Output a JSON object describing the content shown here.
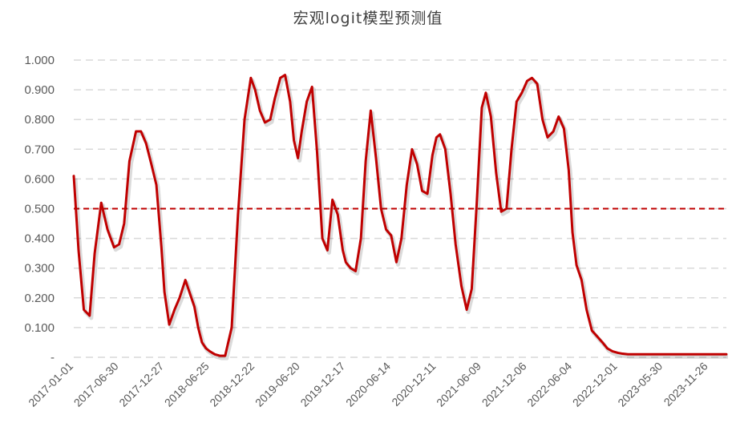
{
  "chart_data": {
    "type": "line",
    "title": "宏观logit模型预测值",
    "xlabel": "",
    "ylabel": "",
    "ylim": [
      0,
      1
    ],
    "y_tick_labels": [
      "-",
      "0.100",
      "0.200",
      "0.300",
      "0.400",
      "0.500",
      "0.600",
      "0.700",
      "0.800",
      "0.900",
      "1.000"
    ],
    "x_tick_labels": [
      "2017-01-01",
      "2017-06-30",
      "2017-12-27",
      "2018-06-25",
      "2018-12-22",
      "2019-06-20",
      "2019-12-17",
      "2020-06-14",
      "2020-12-11",
      "2021-06-09",
      "2021-12-06",
      "2022-06-04",
      "2022-12-01",
      "2023-05-30",
      "2023-11-26"
    ],
    "grid": true,
    "threshold": 0.5,
    "colors": {
      "series": "#C00000",
      "threshold": "#C00000",
      "grid": "#D9D9D9"
    },
    "series": [
      {
        "x": [
          "2017-01-01",
          "2017-01-20",
          "2017-02-10",
          "2017-03-05",
          "2017-03-25",
          "2017-04-20",
          "2017-05-15",
          "2017-06-10",
          "2017-06-30",
          "2017-07-20",
          "2017-08-10",
          "2017-09-05",
          "2017-09-25",
          "2017-10-15",
          "2017-11-05",
          "2017-11-25",
          "2017-12-15",
          "2017-12-27",
          "2018-01-15",
          "2018-02-05",
          "2018-02-25",
          "2018-03-20",
          "2018-04-05",
          "2018-04-25",
          "2018-05-10",
          "2018-05-25",
          "2018-06-10",
          "2018-06-25",
          "2018-07-15",
          "2018-08-05",
          "2018-08-25",
          "2018-09-20",
          "2018-10-15",
          "2018-11-10",
          "2018-12-05",
          "2018-12-22",
          "2019-01-10",
          "2019-01-30",
          "2019-02-20",
          "2019-03-10",
          "2019-04-01",
          "2019-04-20",
          "2019-05-10",
          "2019-05-25",
          "2019-06-10",
          "2019-06-25",
          "2019-07-15",
          "2019-08-05",
          "2019-08-25",
          "2019-09-15",
          "2019-10-05",
          "2019-10-25",
          "2019-11-15",
          "2019-12-05",
          "2019-12-17",
          "2020-01-05",
          "2020-01-25",
          "2020-02-15",
          "2020-03-05",
          "2020-03-25",
          "2020-04-15",
          "2020-05-05",
          "2020-05-25",
          "2020-06-14",
          "2020-07-05",
          "2020-07-25",
          "2020-08-15",
          "2020-09-05",
          "2020-09-25",
          "2020-10-15",
          "2020-11-05",
          "2020-11-25",
          "2020-12-11",
          "2020-12-25",
          "2021-01-15",
          "2021-02-05",
          "2021-02-25",
          "2021-03-20",
          "2021-04-10",
          "2021-04-30",
          "2021-05-20",
          "2021-06-09",
          "2021-06-25",
          "2021-07-15",
          "2021-08-05",
          "2021-08-25",
          "2021-09-15",
          "2021-10-05",
          "2021-10-25",
          "2021-11-15",
          "2021-12-06",
          "2021-12-25",
          "2022-01-15",
          "2022-02-05",
          "2022-02-25",
          "2022-03-20",
          "2022-04-10",
          "2022-05-01",
          "2022-05-20",
          "2022-06-04",
          "2022-06-20",
          "2022-07-10",
          "2022-07-30",
          "2022-08-20",
          "2022-09-10",
          "2022-10-01",
          "2022-10-20",
          "2022-11-10",
          "2022-12-01",
          "2022-12-20",
          "2023-01-10",
          "2023-01-30",
          "2023-02-20",
          "2023-03-10",
          "2023-04-01",
          "2023-04-20",
          "2023-05-10",
          "2023-05-30",
          "2023-06-20",
          "2023-07-10",
          "2023-07-30",
          "2023-08-20",
          "2023-09-10",
          "2023-10-01",
          "2023-10-20",
          "2023-11-10",
          "2023-11-26",
          "2023-12-15",
          "2024-01-01",
          "2024-01-20",
          "2024-02-05"
        ],
        "values": [
          0.61,
          0.36,
          0.16,
          0.14,
          0.35,
          0.52,
          0.43,
          0.37,
          0.38,
          0.45,
          0.66,
          0.76,
          0.76,
          0.72,
          0.65,
          0.58,
          0.37,
          0.22,
          0.11,
          0.16,
          0.2,
          0.26,
          0.22,
          0.17,
          0.1,
          0.05,
          0.03,
          0.02,
          0.01,
          0.005,
          0.005,
          0.1,
          0.48,
          0.8,
          0.94,
          0.9,
          0.83,
          0.79,
          0.8,
          0.87,
          0.94,
          0.95,
          0.86,
          0.73,
          0.67,
          0.76,
          0.86,
          0.91,
          0.69,
          0.4,
          0.36,
          0.53,
          0.48,
          0.36,
          0.32,
          0.3,
          0.29,
          0.4,
          0.66,
          0.83,
          0.67,
          0.5,
          0.43,
          0.41,
          0.32,
          0.4,
          0.58,
          0.7,
          0.65,
          0.56,
          0.55,
          0.68,
          0.74,
          0.75,
          0.7,
          0.55,
          0.38,
          0.24,
          0.16,
          0.23,
          0.52,
          0.84,
          0.89,
          0.81,
          0.62,
          0.49,
          0.5,
          0.7,
          0.86,
          0.89,
          0.93,
          0.94,
          0.92,
          0.8,
          0.74,
          0.76,
          0.81,
          0.77,
          0.63,
          0.42,
          0.31,
          0.26,
          0.16,
          0.09,
          0.07,
          0.05,
          0.03,
          0.02,
          0.015,
          0.012,
          0.01,
          0.01,
          0.01,
          0.01,
          0.01,
          0.01,
          0.01,
          0.01,
          0.01,
          0.01,
          0.01,
          0.01,
          0.01,
          0.01,
          0.01,
          0.01,
          0.01,
          0.01,
          0.01,
          0.01,
          0.01
        ]
      }
    ]
  }
}
